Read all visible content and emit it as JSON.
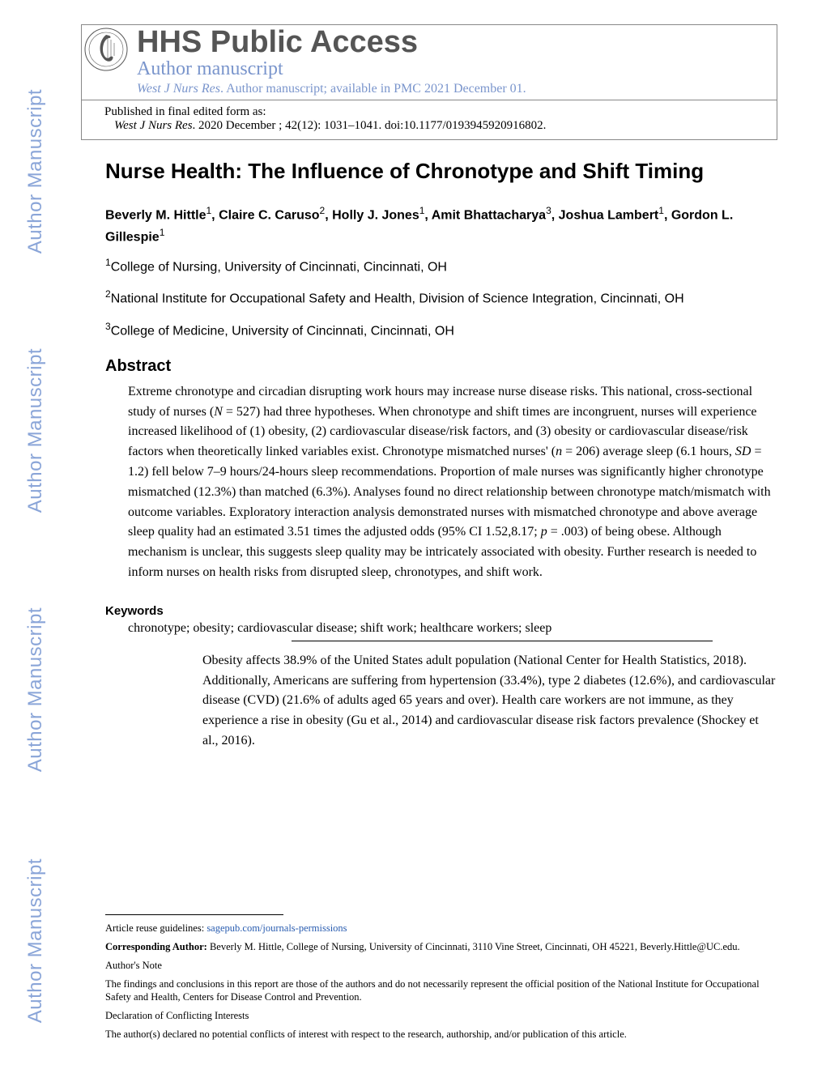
{
  "watermark_text": "Author Manuscript",
  "header": {
    "hhs_title": "HHS Public Access",
    "author_ms": "Author manuscript",
    "journal_name": "West J Nurs Res",
    "avail_text": ". Author manuscript; available in PMC 2021 December 01.",
    "published_label": "Published in final edited form as:",
    "citation_rest": ". 2020 December ; 42(12): 1031–1041. doi:10.1177/0193945920916802."
  },
  "article": {
    "title": "Nurse Health: The Influence of Chronotype and Shift Timing",
    "authors_html": "Beverly M. Hittle<sup>1</sup>, Claire C. Caruso<sup>2</sup>, Holly J. Jones<sup>1</sup>, Amit Bhattacharya<sup>3</sup>, Joshua Lambert<sup>1</sup>, Gordon L. Gillespie<sup>1</sup>",
    "affiliations": [
      "College of Nursing, University of Cincinnati, Cincinnati, OH",
      "National Institute for Occupational Safety and Health, Division of Science Integration, Cincinnati, OH",
      "College of Medicine, University of Cincinnati, Cincinnati, OH"
    ],
    "abstract_heading": "Abstract",
    "abstract_text": "Extreme chronotype and circadian disrupting work hours may increase nurse disease risks. This national, cross-sectional study of nurses (<span class=\"ital\">N</span> = 527) had three hypotheses. When chronotype and shift times are incongruent, nurses will experience increased likelihood of (1) obesity, (2) cardiovascular disease/risk factors, and (3) obesity or cardiovascular disease/risk factors when theoretically linked variables exist. Chronotype mismatched nurses' (<span class=\"ital\">n</span> = 206) average sleep (6.1 hours, <span class=\"ital\">SD</span> = 1.2) fell below 7–9 hours/24-hours sleep recommendations. Proportion of male nurses was significantly higher chronotype mismatched (12.3%) than matched (6.3%). Analyses found no direct relationship between chronotype match/mismatch with outcome variables. Exploratory interaction analysis demonstrated nurses with mismatched chronotype and above average sleep quality had an estimated 3.51 times the adjusted odds (95% CI 1.52,8.17; <span class=\"ital\">p</span> = .003) of being obese. Although mechanism is unclear, this suggests sleep quality may be intricately associated with obesity. Further research is needed to inform nurses on health risks from disrupted sleep, chronotypes, and shift work.",
    "keywords_heading": "Keywords",
    "keywords_text": "chronotype; obesity; cardiovascular disease; shift work; healthcare workers; sleep",
    "intro_text": "Obesity affects 38.9% of the United States adult population (National Center for Health Statistics, 2018). Additionally, Americans are suffering from hypertension (33.4%), type 2 diabetes (12.6%), and cardiovascular disease (CVD) (21.6% of adults aged 65 years and over). Health care workers are not immune, as they experience a rise in obesity (Gu et al., 2014) and cardiovascular disease risk factors prevalence (Shockey et al., 2016)."
  },
  "footnotes": {
    "reuse_label": "Article reuse guidelines: ",
    "reuse_link_text": "sagepub.com/journals-permissions",
    "corr_label": "Corresponding Author:",
    "corr_text": " Beverly M. Hittle, College of Nursing, University of Cincinnati, 3110 Vine Street, Cincinnati, OH 45221, Beverly.Hittle@UC.edu.",
    "authors_note": "Author's Note",
    "findings": "The findings and conclusions in this report are those of the authors and do not necessarily represent the official position of the National Institute for Occupational Safety and Health, Centers for Disease Control and Prevention.",
    "decl_h": "Declaration of Conflicting Interests",
    "decl_text": "The author(s) declared no potential conflicts of interest with respect to the research, authorship, and/or publication of this article."
  },
  "colors": {
    "watermark": "#8aa5d8",
    "link": "#2a5db0",
    "hhs_gray": "#555555"
  }
}
